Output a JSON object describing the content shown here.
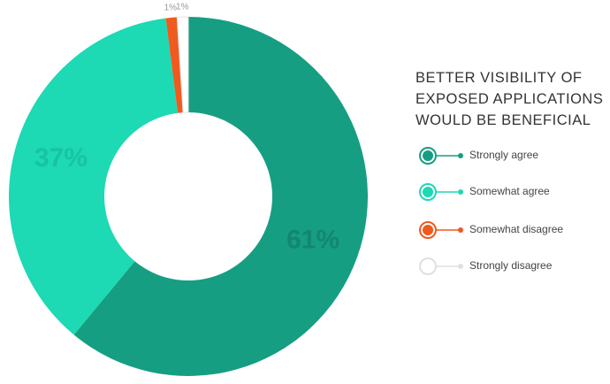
{
  "chart_data": {
    "type": "donut",
    "title": "BETTER VISIBILITY OF EXPOSED APPLICATIONS WOULD BE BENEFICIAL",
    "series": [
      {
        "name": "Strongly agree",
        "color": "#169e82",
        "values": [
          61
        ],
        "value_labels": [
          "61%"
        ]
      },
      {
        "name": "Somewhat agree",
        "color": "#1dd9b4",
        "values": [
          37
        ],
        "value_labels": [
          "37%"
        ]
      },
      {
        "name": "Somewhat disagree",
        "color": "#f05a1e",
        "values": [
          1
        ],
        "value_labels": [
          "1%"
        ]
      },
      {
        "name": "Strongly disagree",
        "color": "#ffffff",
        "values": [
          1
        ],
        "value_labels": [
          "1%"
        ]
      }
    ]
  }
}
